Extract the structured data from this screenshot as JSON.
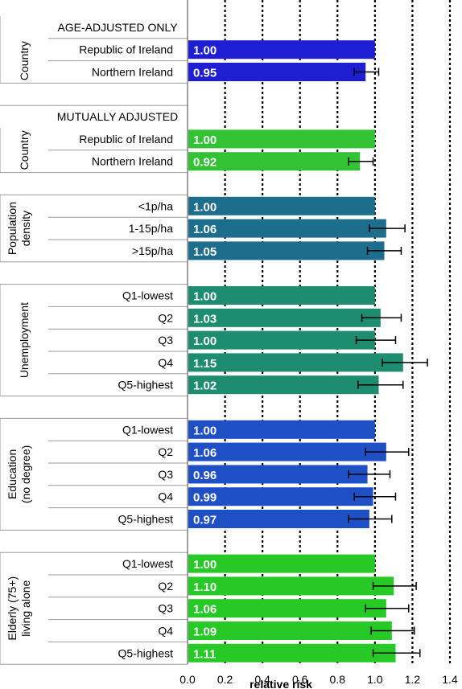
{
  "chart_data": {
    "type": "bar",
    "orientation": "horizontal",
    "xlabel": "relative risk",
    "xlim": [
      0,
      1.4
    ],
    "xticks": [
      "0.0",
      "0.2",
      "0.4",
      "0.6",
      "0.8",
      "1.0",
      "1.2",
      "1.4"
    ],
    "xtick_values": [
      0,
      0.2,
      0.4,
      0.6,
      0.8,
      1.0,
      1.2,
      1.4
    ],
    "grid": "vertical dotted",
    "rows": [
      {
        "kind": "section",
        "text": "AGE-ADJUSTED ONLY"
      },
      {
        "kind": "bar",
        "label": "Republic of Ireland",
        "value": 1.0,
        "display": "1.00",
        "ci": null,
        "color": "#1e1ed2"
      },
      {
        "kind": "bar",
        "label": "Northern Ireland",
        "value": 0.95,
        "display": "0.95",
        "ci": [
          0.89,
          1.02
        ],
        "color": "#1e1ed2"
      },
      {
        "kind": "blank"
      },
      {
        "kind": "section",
        "text": "MUTUALLY ADJUSTED"
      },
      {
        "kind": "bar",
        "label": "Republic of Ireland",
        "value": 1.0,
        "display": "1.00",
        "ci": null,
        "color": "#33c233"
      },
      {
        "kind": "bar",
        "label": "Northern Ireland",
        "value": 0.92,
        "display": "0.92",
        "ci": [
          0.86,
          0.99
        ],
        "color": "#33c233"
      },
      {
        "kind": "blank"
      },
      {
        "kind": "bar",
        "label": "<1p/ha",
        "value": 1.0,
        "display": "1.00",
        "ci": null,
        "color": "#1c6e8c"
      },
      {
        "kind": "bar",
        "label": "1-15p/ha",
        "value": 1.06,
        "display": "1.06",
        "ci": [
          0.97,
          1.16
        ],
        "color": "#1c6e8c"
      },
      {
        "kind": "bar",
        "label": ">15p/ha",
        "value": 1.05,
        "display": "1.05",
        "ci": [
          0.96,
          1.14
        ],
        "color": "#1c6e8c"
      },
      {
        "kind": "blank"
      },
      {
        "kind": "bar",
        "label": "Q1-lowest",
        "value": 1.0,
        "display": "1.00",
        "ci": null,
        "color": "#1e8c6e"
      },
      {
        "kind": "bar",
        "label": "Q2",
        "value": 1.03,
        "display": "1.03",
        "ci": [
          0.93,
          1.14
        ],
        "color": "#1e8c6e"
      },
      {
        "kind": "bar",
        "label": "Q3",
        "value": 1.0,
        "display": "1.00",
        "ci": [
          0.9,
          1.11
        ],
        "color": "#1e8c6e"
      },
      {
        "kind": "bar",
        "label": "Q4",
        "value": 1.15,
        "display": "1.15",
        "ci": [
          1.04,
          1.28
        ],
        "color": "#1e8c6e"
      },
      {
        "kind": "bar",
        "label": "Q5-highest",
        "value": 1.02,
        "display": "1.02",
        "ci": [
          0.91,
          1.15
        ],
        "color": "#1e8c6e"
      },
      {
        "kind": "blank"
      },
      {
        "kind": "bar",
        "label": "Q1-lowest",
        "value": 1.0,
        "display": "1.00",
        "ci": null,
        "color": "#1f4fc4"
      },
      {
        "kind": "bar",
        "label": "Q2",
        "value": 1.06,
        "display": "1.06",
        "ci": [
          0.95,
          1.18
        ],
        "color": "#1f4fc4"
      },
      {
        "kind": "bar",
        "label": "Q3",
        "value": 0.96,
        "display": "0.96",
        "ci": [
          0.86,
          1.08
        ],
        "color": "#1f4fc4"
      },
      {
        "kind": "bar",
        "label": "Q4",
        "value": 0.99,
        "display": "0.99",
        "ci": [
          0.89,
          1.11
        ],
        "color": "#1f4fc4"
      },
      {
        "kind": "bar",
        "label": "Q5-highest",
        "value": 0.97,
        "display": "0.97",
        "ci": [
          0.86,
          1.09
        ],
        "color": "#1f4fc4"
      },
      {
        "kind": "blank"
      },
      {
        "kind": "bar",
        "label": "Q1-lowest",
        "value": 1.0,
        "display": "1.00",
        "ci": null,
        "color": "#26c926"
      },
      {
        "kind": "bar",
        "label": "Q2",
        "value": 1.1,
        "display": "1.10",
        "ci": [
          0.99,
          1.22
        ],
        "color": "#26c926"
      },
      {
        "kind": "bar",
        "label": "Q3",
        "value": 1.06,
        "display": "1.06",
        "ci": [
          0.95,
          1.18
        ],
        "color": "#26c926"
      },
      {
        "kind": "bar",
        "label": "Q4",
        "value": 1.09,
        "display": "1.09",
        "ci": [
          0.98,
          1.21
        ],
        "color": "#26c926"
      },
      {
        "kind": "bar",
        "label": "Q5-highest",
        "value": 1.11,
        "display": "1.11",
        "ci": [
          0.99,
          1.24
        ],
        "color": "#26c926"
      }
    ],
    "groups": [
      {
        "lines": [
          "Country"
        ],
        "first_row": 0,
        "last_row": 2
      },
      {
        "lines": [
          "Country"
        ],
        "first_row": 5,
        "last_row": 6
      },
      {
        "lines": [
          "Population",
          "density"
        ],
        "first_row": 8,
        "last_row": 10
      },
      {
        "lines": [
          "Unemployment"
        ],
        "first_row": 12,
        "last_row": 16
      },
      {
        "lines": [
          "Education",
          "(no degree)"
        ],
        "first_row": 18,
        "last_row": 22
      },
      {
        "lines": [
          "Elderly (75+)",
          "living alone"
        ],
        "first_row": 24,
        "last_row": 28
      }
    ]
  }
}
